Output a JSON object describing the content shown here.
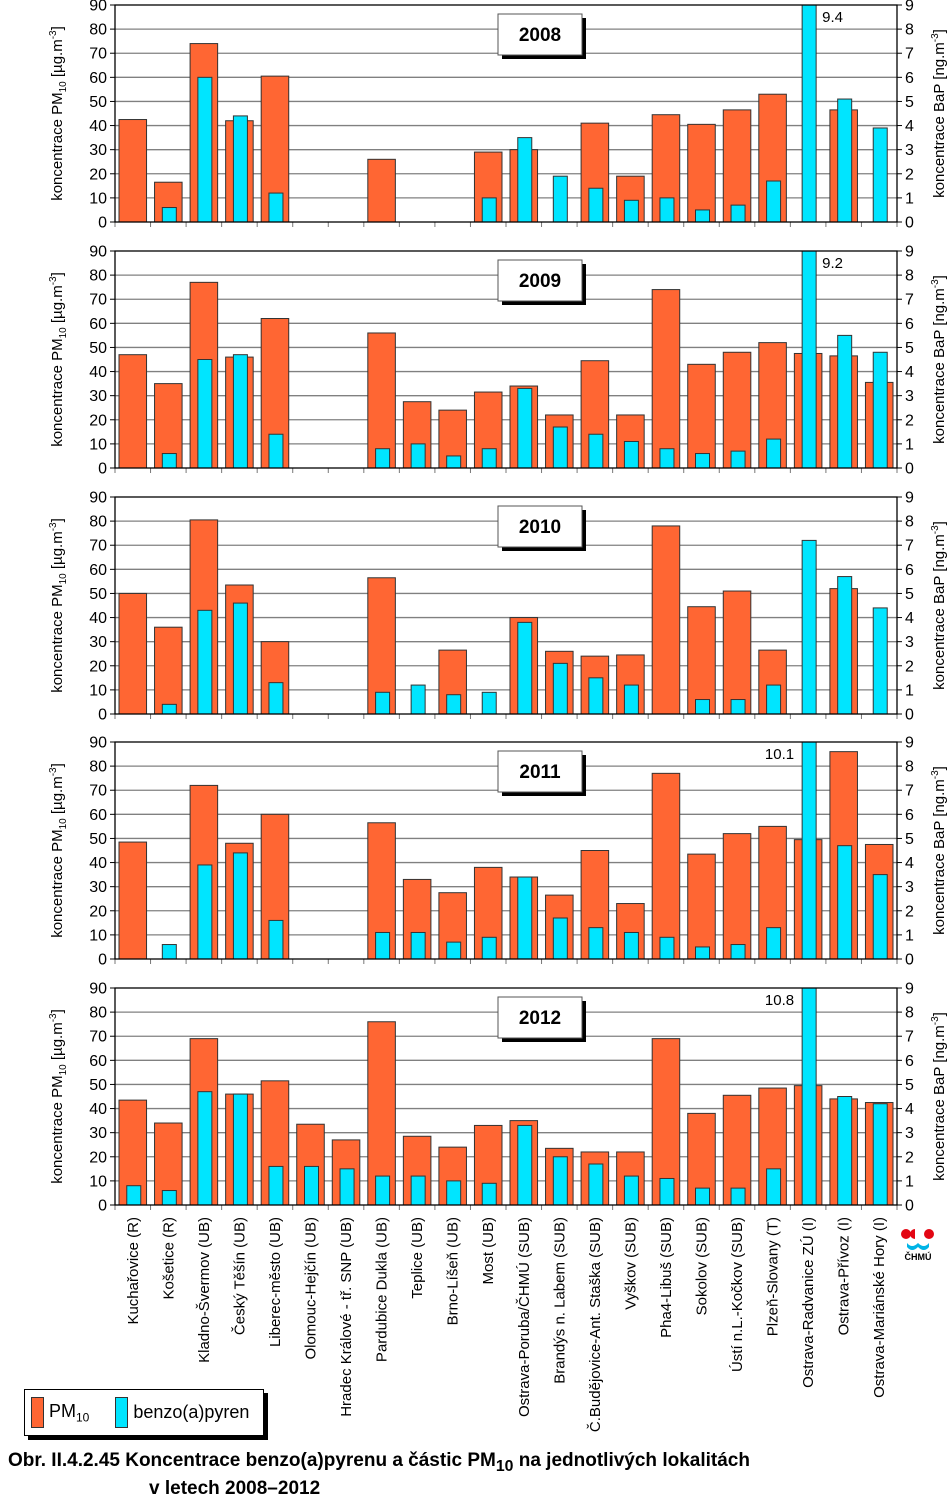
{
  "chart_data": {
    "type": "bar",
    "title": "Obr. II.4.2.45 Koncentrace benzo(a)pyrenu a částic PM10 na jednotlivých lokalitách v letech 2008–2012",
    "ylabel": "koncentrace PM10 [µg.m-3]",
    "y2label": "koncentrace BaP [ng.m-3]",
    "ylim": [
      0,
      90
    ],
    "y2lim": [
      0,
      9
    ],
    "yticks": [
      "0",
      "10",
      "20",
      "30",
      "40",
      "50",
      "60",
      "70",
      "80",
      "90"
    ],
    "y2ticks": [
      "0",
      "1",
      "2",
      "3",
      "4",
      "5",
      "6",
      "7",
      "8",
      "9"
    ],
    "grid": true,
    "legend_position": "bottom-left",
    "categories": [
      "Kuchařovice (R)",
      "Košetice (R)",
      "Kladno-Švermov (UB)",
      "Český Těšín (UB)",
      "Liberec-město (UB)",
      "Olomouc-Hejčín (UB)",
      "Hradec Králové - tř. SNP (UB)",
      "Pardubice Dukla (UB)",
      "Teplice  (UB)",
      "Brno-Líšeň (UB)",
      "Most (UB)",
      "Ostrava-Poruba/ČHMÚ (SUB)",
      "Brandýs n. Labem (SUB)",
      "Č.Budějovice-Ant. Staška (SUB)",
      "Vyškov (SUB)",
      "Pha4-Libuš (SUB)",
      "Sokolov (SUB)",
      "Ústí n.L.-Kočkov (SUB)",
      "Plzeň-Slovany (T)",
      "Ostrava-Radvanice ZÚ (I)",
      "Ostrava-Přívoz (I)",
      "Ostrava-Mariánské Hory (I)"
    ],
    "panels": [
      {
        "year": "2008",
        "series": [
          {
            "name": "PM10",
            "axis": "left",
            "values": [
              42.5,
              16.5,
              74,
              42,
              60.5,
              null,
              null,
              26,
              null,
              null,
              29,
              30,
              null,
              41,
              19,
              44.5,
              40.5,
              46.5,
              53,
              null,
              46.5,
              null
            ]
          },
          {
            "name": "benzo(a)pyren",
            "axis": "right",
            "values": [
              null,
              0.6,
              6.0,
              4.4,
              1.2,
              null,
              null,
              null,
              null,
              null,
              1.0,
              3.5,
              1.9,
              1.4,
              0.9,
              1.0,
              0.5,
              0.7,
              1.7,
              9.4,
              5.1,
              3.9
            ]
          }
        ],
        "annotations": [
          {
            "category_index": 19,
            "text": "9.4",
            "side": "right"
          }
        ]
      },
      {
        "year": "2009",
        "series": [
          {
            "name": "PM10",
            "axis": "left",
            "values": [
              47,
              35,
              77,
              46,
              62,
              null,
              null,
              56,
              27.5,
              24,
              31.5,
              34,
              22,
              44.5,
              22,
              74,
              43,
              48,
              52,
              47.5,
              46.5,
              35.5
            ]
          },
          {
            "name": "benzo(a)pyren",
            "axis": "right",
            "values": [
              null,
              0.6,
              4.5,
              4.7,
              1.4,
              null,
              null,
              0.8,
              1.0,
              0.5,
              0.8,
              3.3,
              1.7,
              1.4,
              1.1,
              0.8,
              0.6,
              0.7,
              1.2,
              9.2,
              5.5,
              4.8
            ]
          }
        ],
        "annotations": [
          {
            "category_index": 19,
            "text": "9.2",
            "side": "right"
          }
        ]
      },
      {
        "year": "2010",
        "series": [
          {
            "name": "PM10",
            "axis": "left",
            "values": [
              50,
              36,
              80.5,
              53.5,
              30,
              null,
              null,
              56.5,
              null,
              26.5,
              null,
              40,
              26,
              24,
              24.5,
              78,
              44.5,
              51,
              26.5,
              null,
              52,
              null
            ]
          },
          {
            "name": "benzo(a)pyren",
            "axis": "right",
            "values": [
              null,
              0.4,
              4.3,
              4.6,
              1.3,
              null,
              null,
              0.9,
              1.2,
              0.8,
              0.9,
              3.8,
              2.1,
              1.5,
              1.2,
              null,
              0.6,
              0.6,
              1.2,
              7.2,
              5.7,
              4.4
            ]
          }
        ],
        "annotations": []
      },
      {
        "year": "2011",
        "series": [
          {
            "name": "PM10",
            "axis": "left",
            "values": [
              48.5,
              null,
              72,
              48,
              60,
              null,
              null,
              56.5,
              33,
              27.5,
              38,
              34,
              26.5,
              45,
              23,
              77,
              43.5,
              52,
              55,
              49.5,
              86,
              47.5
            ]
          },
          {
            "name": "benzo(a)pyren",
            "axis": "right",
            "values": [
              null,
              0.6,
              3.9,
              4.4,
              1.6,
              null,
              null,
              1.1,
              1.1,
              0.7,
              0.9,
              3.4,
              1.7,
              1.3,
              1.1,
              0.9,
              0.5,
              0.6,
              1.3,
              10.1,
              4.7,
              3.5
            ]
          }
        ],
        "annotations": [
          {
            "category_index": 19,
            "text": "10.1",
            "side": "left"
          }
        ]
      },
      {
        "year": "2012",
        "series": [
          {
            "name": "PM10",
            "axis": "left",
            "values": [
              43.5,
              34,
              69,
              46,
              51.5,
              33.5,
              27,
              76,
              28.5,
              24,
              33,
              35,
              23.5,
              22,
              22,
              69,
              38,
              45.5,
              48.5,
              49.5,
              44,
              42.5
            ]
          },
          {
            "name": "benzo(a)pyren",
            "axis": "right",
            "values": [
              0.8,
              0.6,
              4.7,
              4.6,
              1.6,
              1.6,
              1.5,
              1.2,
              1.2,
              1.0,
              0.9,
              3.3,
              2.0,
              1.7,
              1.2,
              1.1,
              0.7,
              0.7,
              1.5,
              10.8,
              4.5,
              4.2
            ]
          }
        ],
        "annotations": [
          {
            "category_index": 19,
            "text": "10.8",
            "side": "left"
          }
        ]
      }
    ]
  },
  "colors": {
    "pm10": "#ff6633",
    "bap": "#00e5ff",
    "grid": "#808080",
    "logo_red": "#e30613",
    "logo_blue": "#00b4e6"
  },
  "legend": {
    "pm_label": "PM",
    "pm_sub": "10",
    "bap_label": "benzo(a)pyren"
  },
  "caption": {
    "prefix": "Obr. II.4.2.45  Koncentrace benzo(a)pyrenu a částic PM",
    "sub": "10",
    "suffix": " na jednotlivých lokalitách",
    "line2": "v letech 2008–2012"
  },
  "logo": {
    "text": "ČHMÚ"
  }
}
